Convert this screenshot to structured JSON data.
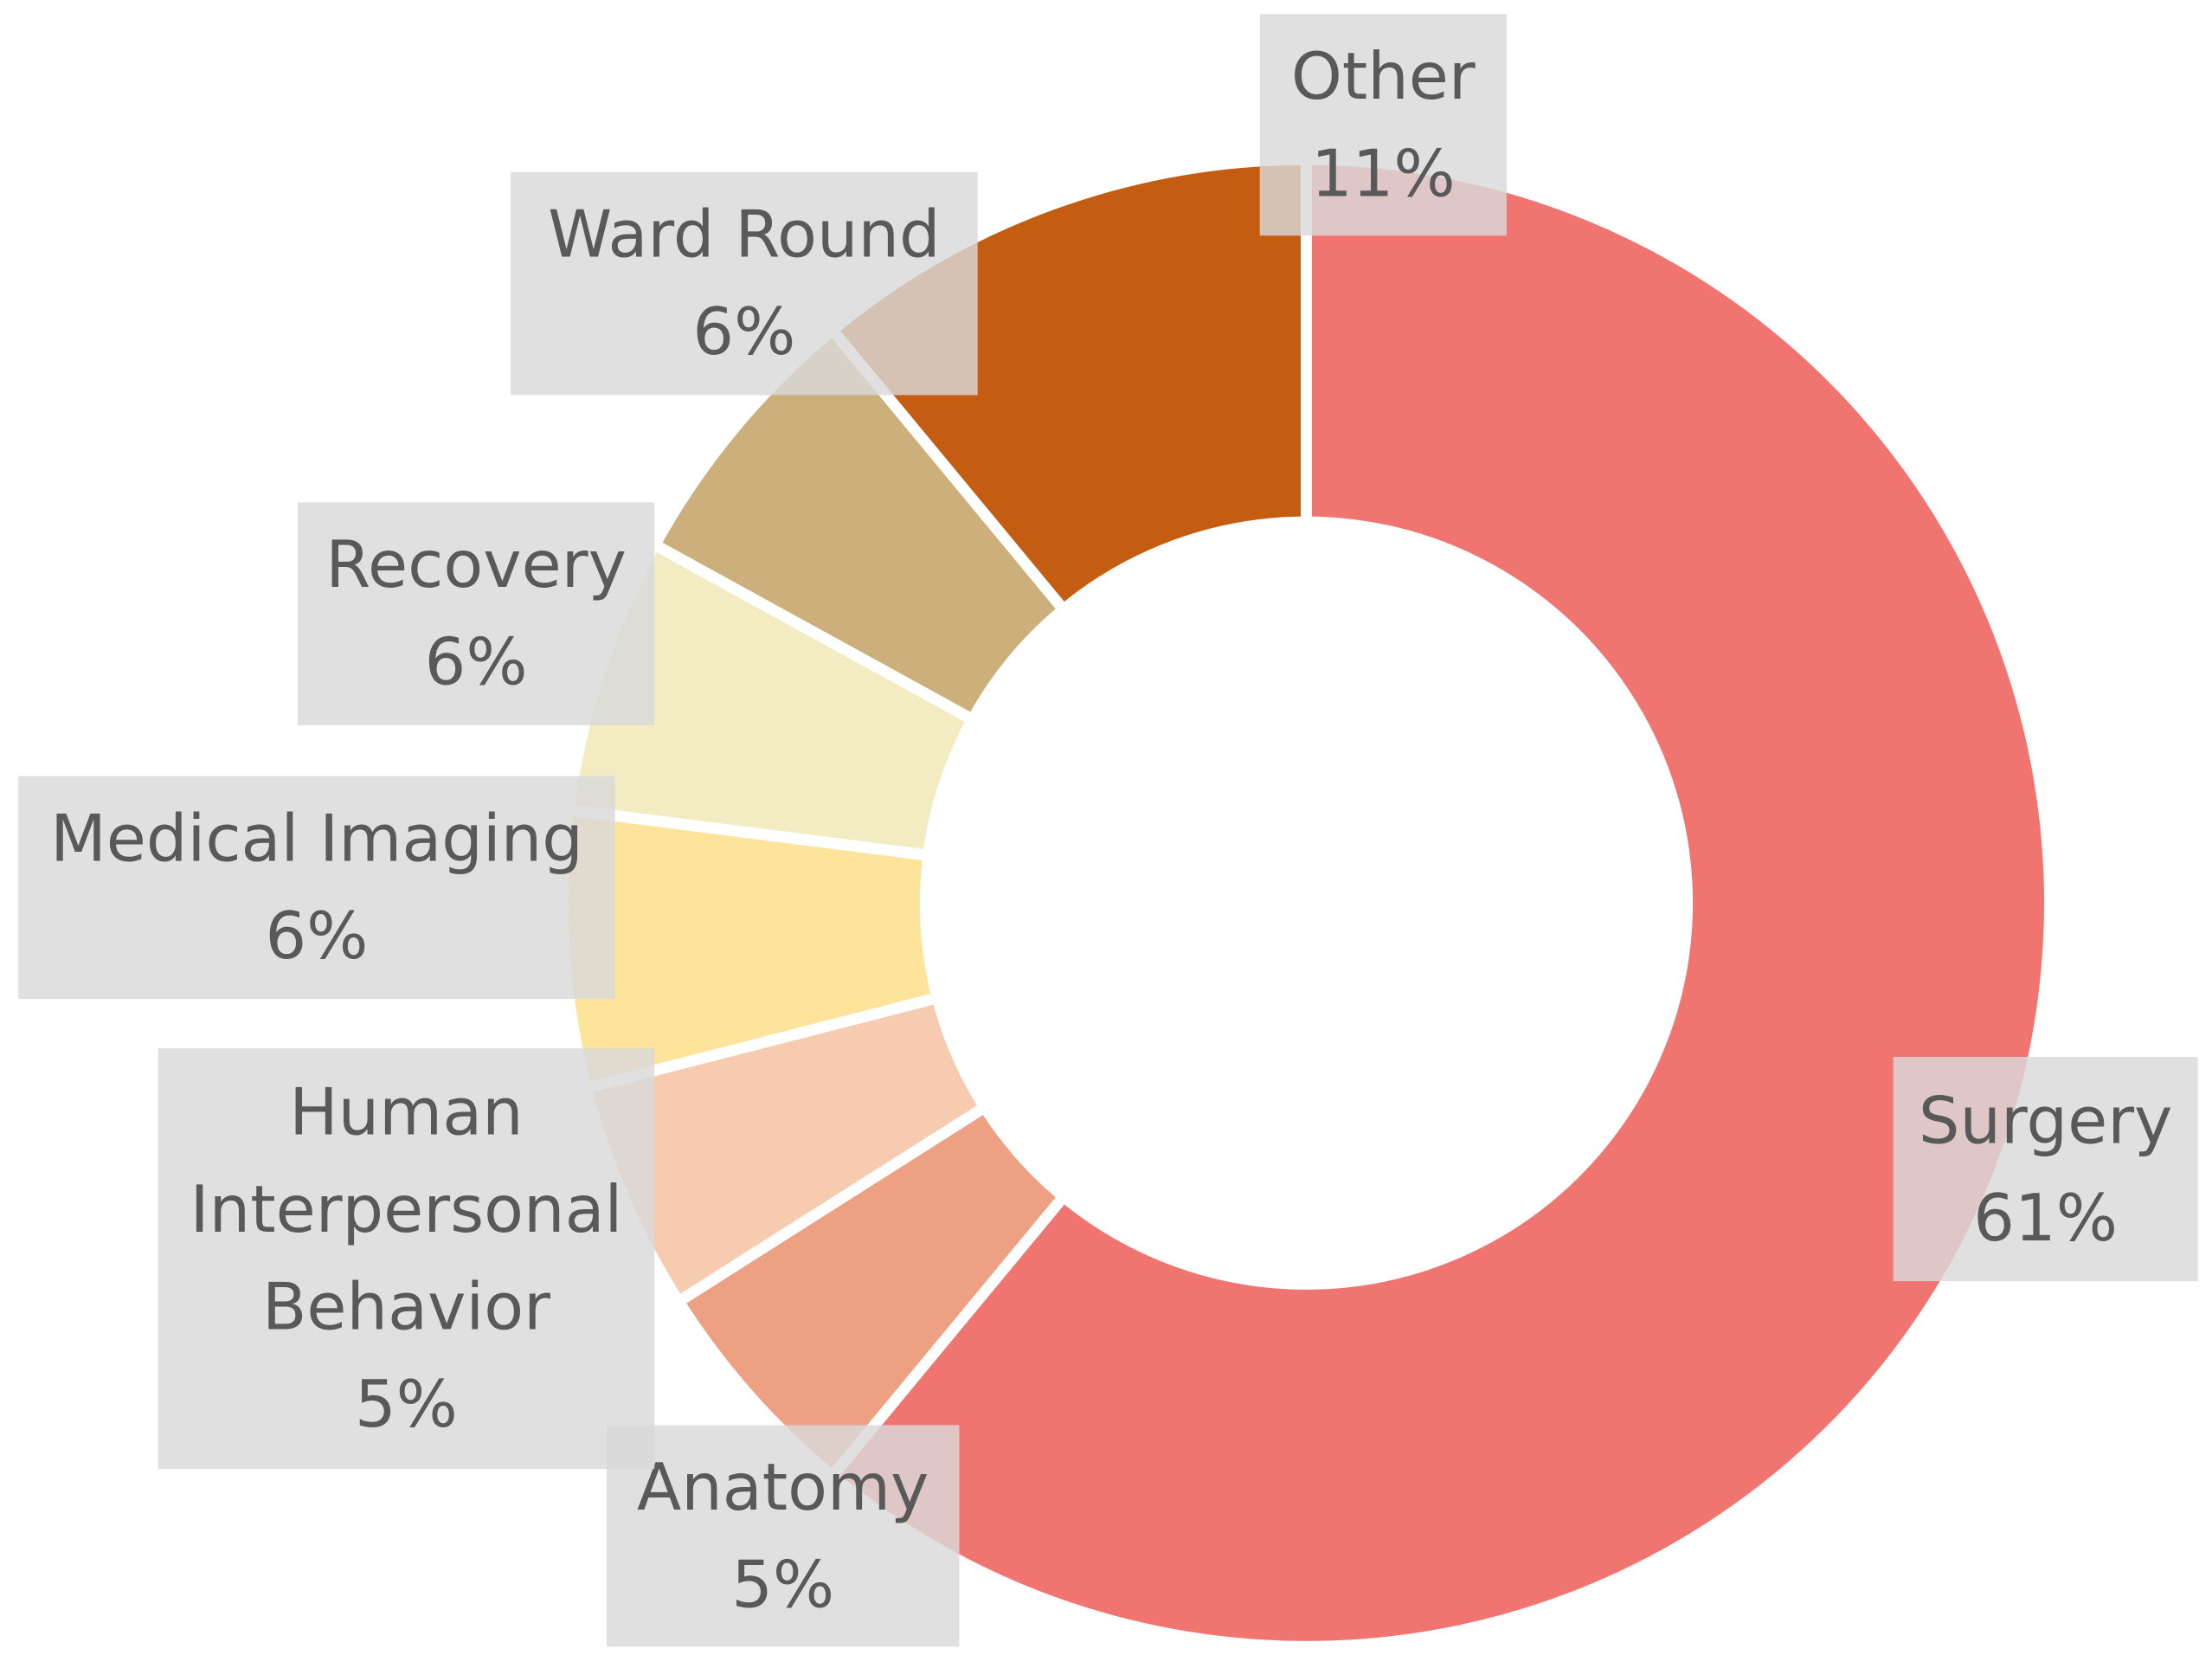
{
  "chart_data": {
    "type": "donut",
    "categories": [
      "Surgery",
      "Anatomy",
      "Human Interpersonal Behavior",
      "Medical Imaging",
      "Recovery",
      "Ward Round",
      "Other"
    ],
    "values": [
      61,
      5,
      5,
      6,
      6,
      6,
      11
    ],
    "value_labels": [
      "61%",
      "5%",
      "5%",
      "6%",
      "6%",
      "6%",
      "11%"
    ],
    "colors": [
      "#f07470",
      "#eea083",
      "#f7cbb0",
      "#fee49a",
      "#f3ebc2",
      "#cdaf7c",
      "#c45c12"
    ]
  }
}
